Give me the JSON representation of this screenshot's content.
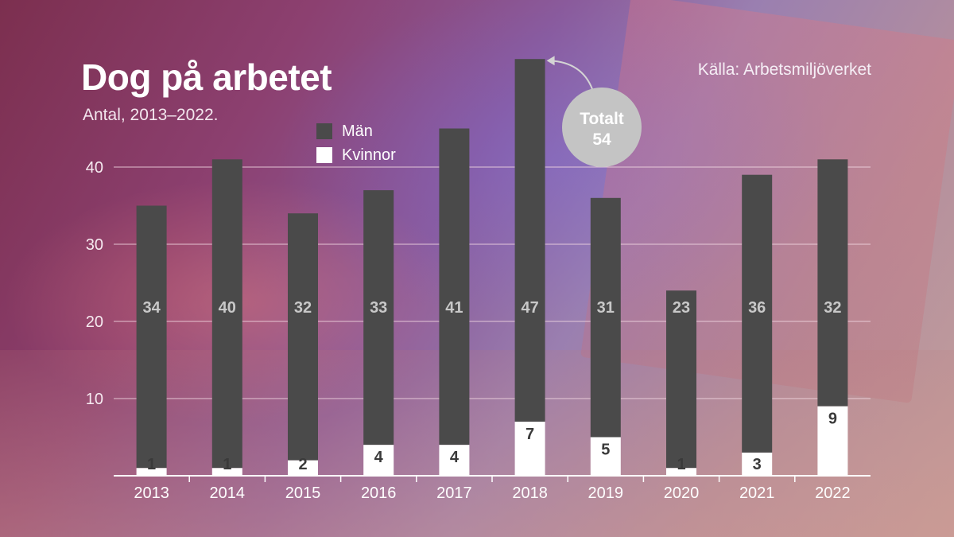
{
  "title": "Dog på arbetet",
  "subtitle": "Antal, 2013–2022.",
  "source": "Källa: Arbetsmiljöverket",
  "legend": {
    "men": "Män",
    "women": "Kvinnor"
  },
  "callout": {
    "line1": "Totalt",
    "line2": "54"
  },
  "colors": {
    "men": "#4a4a4a",
    "women": "#ffffff",
    "men_label": "#c8c8c8",
    "women_label": "#3a3a3a",
    "callout": "#c4c4c4",
    "grid": "#f2d8e2"
  },
  "chart_data": {
    "type": "bar",
    "stacked": true,
    "categories": [
      "2013",
      "2014",
      "2015",
      "2016",
      "2017",
      "2018",
      "2019",
      "2020",
      "2021",
      "2022"
    ],
    "series": [
      {
        "name": "Kvinnor",
        "values": [
          1,
          1,
          2,
          4,
          4,
          7,
          5,
          1,
          3,
          9
        ]
      },
      {
        "name": "Män",
        "values": [
          34,
          40,
          32,
          33,
          41,
          47,
          31,
          23,
          36,
          32
        ]
      }
    ],
    "yticks": [
      10,
      20,
      30,
      40
    ],
    "ylim": [
      0,
      55
    ],
    "grid": true,
    "legend_position": "top-center",
    "annotation": {
      "category": "2018",
      "text": "Totalt 54"
    }
  }
}
